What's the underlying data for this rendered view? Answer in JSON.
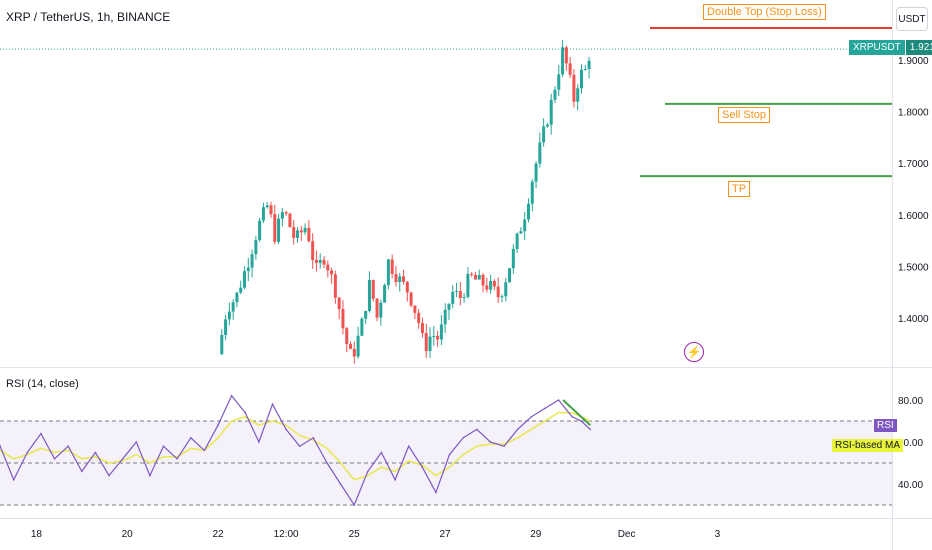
{
  "header": {
    "title": "XRP / TetherUS, 1h, BINANCE",
    "currency": "USDT",
    "rsi_title": "RSI (14, close)"
  },
  "price_tag": {
    "symbol": "XRPUSDT",
    "value": "1.9210"
  },
  "annotations": {
    "double_top": "Double Top (Stop Loss)",
    "sell_stop": "Sell Stop",
    "tp": "TP"
  },
  "rsi_tags": {
    "rsi": "RSI",
    "ma": "RSI-based MA"
  },
  "colors": {
    "up": "#26a69a",
    "down": "#ef5350",
    "rsi": "#7e57c2",
    "ma": "#e8e84a",
    "stop": "#e53935",
    "target": "#43a047",
    "label": "#f7931a"
  },
  "icons": {
    "event": "lightning-icon"
  },
  "chart_data": [
    {
      "type": "candlestick",
      "symbol": "XRP / TetherUS",
      "interval": "1h",
      "exchange": "BINANCE",
      "price_axis": {
        "ticks": [
          "1.9000",
          "1.8000",
          "1.7000",
          "1.6000",
          "1.5000",
          "1.4000"
        ],
        "ylim": [
          1.31,
          2.0
        ]
      },
      "x_axis": {
        "ticks": [
          "18",
          "20",
          "22",
          "12:00",
          "25",
          "27",
          "29",
          "Dec",
          "3"
        ]
      },
      "current_price": 1.921,
      "levels": [
        {
          "name": "Double Top (Stop Loss)",
          "value": 1.962
        },
        {
          "name": "Sell Stop",
          "value": 1.815
        },
        {
          "name": "TP",
          "value": 1.675
        }
      ],
      "close_path": [
        [
          22.0,
          1.33
        ],
        [
          22.2,
          1.42
        ],
        [
          22.4,
          1.44
        ],
        [
          22.7,
          1.52
        ],
        [
          22.9,
          1.58
        ],
        [
          23.1,
          1.62
        ],
        [
          23.25,
          1.56
        ],
        [
          23.45,
          1.61
        ],
        [
          23.7,
          1.55
        ],
        [
          23.95,
          1.58
        ],
        [
          24.15,
          1.49
        ],
        [
          24.35,
          1.52
        ],
        [
          24.6,
          1.45
        ],
        [
          24.8,
          1.36
        ],
        [
          24.95,
          1.32
        ],
        [
          25.15,
          1.38
        ],
        [
          25.35,
          1.47
        ],
        [
          25.5,
          1.4
        ],
        [
          25.75,
          1.51
        ],
        [
          25.95,
          1.48
        ],
        [
          26.2,
          1.45
        ],
        [
          26.4,
          1.4
        ],
        [
          26.55,
          1.34
        ],
        [
          26.7,
          1.37
        ],
        [
          26.85,
          1.36
        ],
        [
          27.0,
          1.4
        ],
        [
          27.15,
          1.45
        ],
        [
          27.35,
          1.44
        ],
        [
          27.55,
          1.48
        ],
        [
          27.75,
          1.47
        ],
        [
          28.0,
          1.46
        ],
        [
          28.2,
          1.44
        ],
        [
          28.35,
          1.48
        ],
        [
          28.55,
          1.54
        ],
        [
          28.75,
          1.6
        ],
        [
          28.95,
          1.68
        ],
        [
          29.15,
          1.75
        ],
        [
          29.35,
          1.82
        ],
        [
          29.5,
          1.88
        ],
        [
          29.6,
          1.92
        ],
        [
          29.75,
          1.86
        ],
        [
          29.85,
          1.82
        ],
        [
          29.95,
          1.87
        ],
        [
          30.1,
          1.88
        ],
        [
          30.2,
          1.92
        ]
      ]
    },
    {
      "type": "line",
      "name": "RSI (14, close)",
      "y_axis": {
        "ticks": [
          "80.00",
          "60.00",
          "40.00"
        ],
        "ylim": [
          25,
          90
        ]
      },
      "bands": {
        "upper": 70,
        "middle": 50,
        "lower": 30
      },
      "x": [
        16.0,
        16.3,
        16.6,
        16.9,
        17.2,
        17.5,
        17.8,
        18.1,
        18.4,
        18.7,
        19.0,
        19.3,
        19.6,
        19.9,
        20.2,
        20.5,
        20.8,
        21.1,
        21.4,
        21.7,
        22.0,
        22.3,
        22.6,
        22.9,
        23.2,
        23.5,
        23.8,
        24.1,
        24.4,
        24.7,
        25.0,
        25.3,
        25.6,
        25.9,
        26.2,
        26.5,
        26.8,
        27.1,
        27.4,
        27.7,
        28.0,
        28.3,
        28.6,
        28.9,
        29.2,
        29.5,
        29.8,
        30.0,
        30.2
      ],
      "series": [
        {
          "values": [
            72,
            78,
            66,
            48,
            58,
            42,
            55,
            64,
            52,
            58,
            46,
            55,
            44,
            52,
            60,
            44,
            58,
            52,
            62,
            56,
            68,
            82,
            74,
            60,
            78,
            66,
            58,
            62,
            50,
            40,
            30,
            46,
            55,
            42,
            58,
            48,
            36,
            54,
            62,
            66,
            60,
            58,
            66,
            72,
            76,
            80,
            72,
            70,
            66
          ]
        },
        {
          "values": [
            66,
            68,
            64,
            58,
            56,
            52,
            54,
            57,
            55,
            56,
            52,
            53,
            50,
            51,
            54,
            50,
            53,
            53,
            57,
            56,
            62,
            70,
            72,
            68,
            70,
            68,
            63,
            61,
            57,
            50,
            42,
            44,
            48,
            46,
            51,
            49,
            44,
            48,
            54,
            58,
            59,
            59,
            62,
            66,
            70,
            74,
            74,
            72,
            70
          ]
        }
      ]
    }
  ]
}
